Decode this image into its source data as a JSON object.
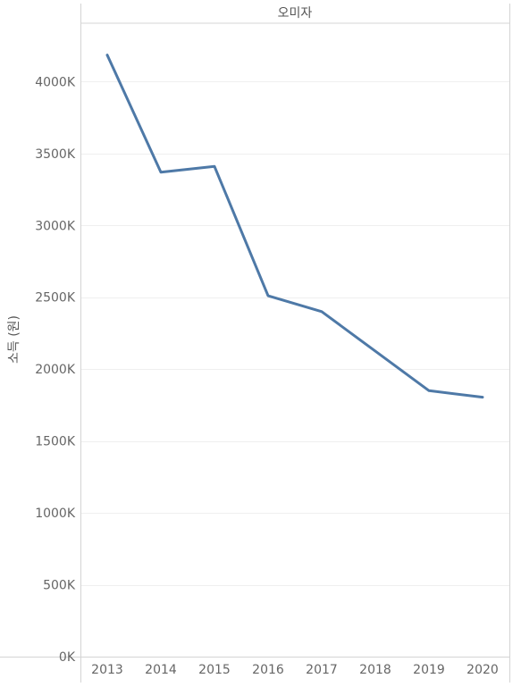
{
  "chart_data": {
    "type": "line",
    "panel_header": "오미자",
    "title": "",
    "xlabel": "",
    "ylabel": "소득 (원)",
    "x": [
      "2013",
      "2014",
      "2015",
      "2016",
      "2017",
      "2018",
      "2019",
      "2020"
    ],
    "series": [
      {
        "values": [
          4185000,
          3370000,
          3410000,
          2510000,
          2400000,
          2125000,
          1850000,
          1805000
        ],
        "color": "#4e79a7"
      }
    ],
    "y_ticks": [
      0,
      500000,
      1000000,
      1500000,
      2000000,
      2500000,
      3000000,
      3500000,
      4000000
    ],
    "y_tick_labels": [
      "0K",
      "500K",
      "1000K",
      "1500K",
      "2000K",
      "2500K",
      "3000K",
      "3500K",
      "4000K"
    ],
    "ylim": [
      0,
      4400000
    ],
    "grid": true,
    "legend": "none"
  }
}
